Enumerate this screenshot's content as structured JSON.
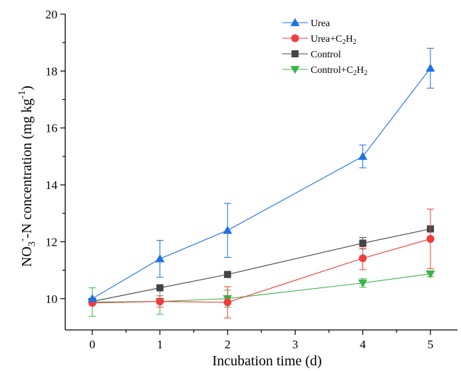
{
  "chart_data": {
    "type": "line",
    "xlabel": "Incubation time (d)",
    "ylabel": {
      "base": "NO",
      "sub": "3",
      "sup": "-",
      "mid": "-N concentration (mg kg",
      "exp": "-1",
      "end": ")"
    },
    "xlim": [
      -0.4,
      5.4
    ],
    "ylim": [
      8.9,
      20
    ],
    "xticks": [
      0,
      1,
      2,
      3,
      4,
      5
    ],
    "yticks": [
      10,
      12,
      14,
      16,
      18,
      20
    ],
    "grid": false,
    "legend_position": "top-right",
    "series": [
      {
        "name": "Urea",
        "name_parts": [
          "Urea",
          "",
          ""
        ],
        "color": "#1f6fe6",
        "marker": "triangle-up",
        "x": [
          0,
          1,
          2,
          4,
          5
        ],
        "y": [
          10.0,
          11.4,
          12.4,
          15.0,
          18.1
        ],
        "err": [
          0.0,
          0.65,
          0.95,
          0.4,
          0.7
        ]
      },
      {
        "name": "Urea+C2H2",
        "name_parts": [
          "Urea+C",
          "2",
          "H",
          "2"
        ],
        "color": "#f03c3c",
        "marker": "circle",
        "x": [
          0,
          1,
          2,
          4,
          5
        ],
        "y": [
          9.85,
          9.9,
          9.87,
          11.42,
          12.1
        ],
        "err": [
          0.0,
          0.2,
          0.55,
          0.4,
          1.05
        ]
      },
      {
        "name": "Control",
        "name_parts": [
          "Control"
        ],
        "color": "#444444",
        "marker": "square",
        "x": [
          0,
          1,
          2,
          4,
          5
        ],
        "y": [
          9.9,
          10.38,
          10.85,
          11.95,
          12.45
        ],
        "err": [
          0.0,
          0.0,
          0.0,
          0.2,
          0.0
        ]
      },
      {
        "name": "Control+C2H2",
        "name_parts": [
          "Control+C",
          "2",
          "H",
          "2"
        ],
        "color": "#3cb44b",
        "marker": "triangle-down",
        "x": [
          0,
          1,
          2,
          4,
          5
        ],
        "y": [
          9.88,
          9.9,
          10.0,
          10.55,
          10.87
        ],
        "err": [
          0.5,
          0.45,
          0.3,
          0.15,
          0.1
        ]
      }
    ]
  }
}
